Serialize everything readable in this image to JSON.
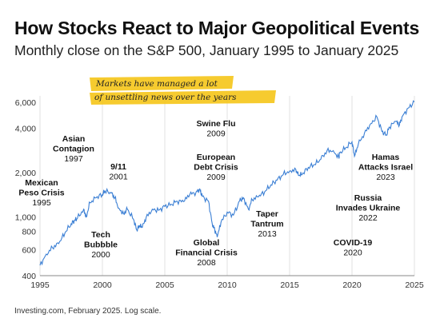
{
  "header": {
    "title": "How Stocks React to Major Geopolitical Events",
    "subtitle": "Monthly close on the S&P 500, January 1995 to January 2025"
  },
  "footer": {
    "source": "Investing.com, February 2025. Log scale."
  },
  "annotation": {
    "line1": "Markets have managed a lot",
    "line2": "of unsettling news over the years",
    "highlight_color": "#f5c518"
  },
  "colors": {
    "line": "#3b7fd4",
    "grid": "#d9d9d9",
    "axis": "#888888"
  },
  "chart_data": {
    "type": "line",
    "title": "How Stocks React to Major Geopolitical Events",
    "subtitle": "Monthly close on the S&P 500, January 1995 to January 2025",
    "xlabel": "",
    "ylabel": "",
    "y_scale": "log",
    "xlim": [
      1995,
      2025
    ],
    "ylim": [
      400,
      6000
    ],
    "x_ticks": [
      "1995",
      "2000",
      "2005",
      "2010",
      "2015",
      "2020",
      "2025"
    ],
    "y_ticks": [
      {
        "value": 400,
        "label": "400"
      },
      {
        "value": 600,
        "label": "600"
      },
      {
        "value": 800,
        "label": "800"
      },
      {
        "value": 1000,
        "label": "1,000"
      },
      {
        "value": 2000,
        "label": "2,000"
      },
      {
        "value": 4000,
        "label": "4,000"
      },
      {
        "value": 6000,
        "label": "6,000"
      }
    ],
    "grid": "vertical",
    "series": [
      {
        "values_note_free": true,
        "x": [
          1995.0,
          1995.5,
          1996.0,
          1996.5,
          1997.0,
          1997.5,
          1997.8,
          1998.0,
          1998.5,
          1998.7,
          1999.0,
          1999.5,
          2000.0,
          2000.2,
          2000.7,
          2001.0,
          2001.3,
          2001.7,
          2002.0,
          2002.5,
          2002.75,
          2003.0,
          2003.2,
          2003.5,
          2004.0,
          2004.5,
          2005.0,
          2005.5,
          2006.0,
          2006.5,
          2007.0,
          2007.5,
          2007.8,
          2008.0,
          2008.5,
          2008.8,
          2009.0,
          2009.2,
          2009.5,
          2010.0,
          2010.5,
          2011.0,
          2011.3,
          2011.7,
          2012.0,
          2012.5,
          2013.0,
          2013.5,
          2014.0,
          2014.5,
          2015.0,
          2015.5,
          2015.7,
          2016.0,
          2016.5,
          2017.0,
          2017.5,
          2018.0,
          2018.5,
          2018.95,
          2019.0,
          2019.5,
          2020.0,
          2020.2,
          2020.5,
          2021.0,
          2021.5,
          2022.0,
          2022.4,
          2022.75,
          2023.0,
          2023.5,
          2023.8,
          2024.0,
          2024.5,
          2025.0
        ],
        "values": [
          470,
          560,
          620,
          660,
          780,
          900,
          950,
          980,
          1130,
          1000,
          1250,
          1350,
          1420,
          1500,
          1450,
          1350,
          1150,
          1050,
          1130,
          960,
          820,
          870,
          850,
          990,
          1130,
          1110,
          1180,
          1220,
          1280,
          1270,
          1420,
          1470,
          1550,
          1380,
          1280,
          900,
          820,
          730,
          920,
          1080,
          1030,
          1290,
          1350,
          1130,
          1310,
          1370,
          1480,
          1650,
          1780,
          1950,
          2050,
          2100,
          1920,
          1940,
          2170,
          2270,
          2460,
          2820,
          2820,
          2510,
          2700,
          2950,
          3230,
          2580,
          3100,
          3710,
          4300,
          4770,
          3800,
          3600,
          4080,
          4450,
          4200,
          4770,
          5480,
          6040
        ]
      }
    ],
    "events": [
      {
        "name": "Mexican\nPeso Crisis",
        "year": "1995"
      },
      {
        "name": "Asian\nContagion",
        "year": "1997"
      },
      {
        "name": "9/11",
        "year": "2001"
      },
      {
        "name": "Tech\nBubbble",
        "year": "2000"
      },
      {
        "name": "Swine Flu",
        "year": "2009"
      },
      {
        "name": "European\nDebt Crisis",
        "year": "2009"
      },
      {
        "name": "Global\nFinancial Crisis",
        "year": "2008"
      },
      {
        "name": "Taper\nTantrum",
        "year": "2013"
      },
      {
        "name": "Hamas\nAttacks Israel",
        "year": "2023"
      },
      {
        "name": "Russia\nInvades Ukraine",
        "year": "2022"
      },
      {
        "name": "COVID-19",
        "year": "2020"
      }
    ]
  }
}
